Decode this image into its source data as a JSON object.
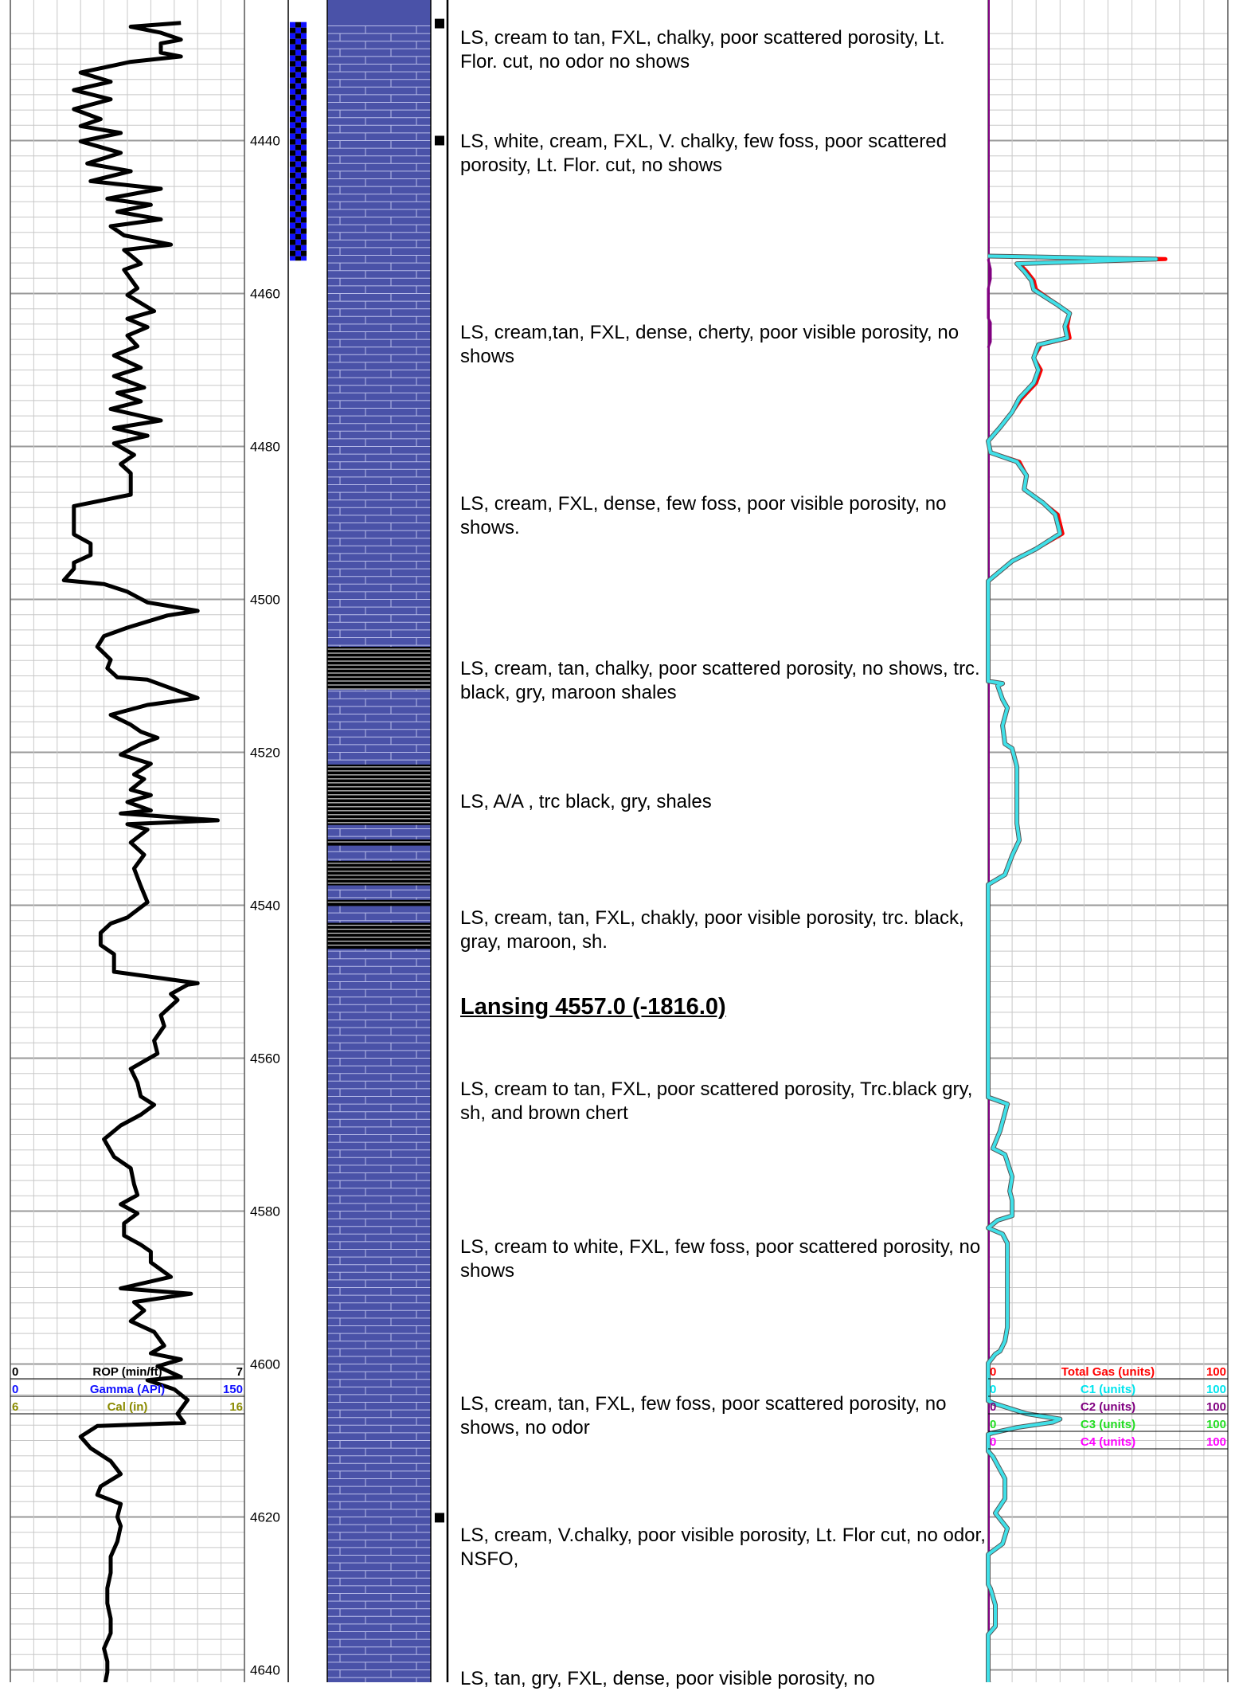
{
  "chart_data": {
    "type": "line",
    "title": "",
    "depth_axis": {
      "ticks": [
        4440,
        4460,
        4480,
        4500,
        4520,
        4540,
        4560,
        4580,
        4600,
        4620,
        4640
      ],
      "range": [
        4424.5,
        4642.5
      ]
    },
    "track1_curves": [
      {
        "name": "ROP (min/ft)",
        "min": "0",
        "max": "7",
        "color": "#000000"
      },
      {
        "name": "Gamma (API)",
        "min": "0",
        "max": "150",
        "color": "#1010ff"
      },
      {
        "name": "Cal (in)",
        "min": "6",
        "max": "16",
        "color": "#8a8a00"
      }
    ],
    "gas_curves": [
      {
        "name": "Total Gas (units)",
        "min": "0",
        "max": "100",
        "color": "#ff0000"
      },
      {
        "name": "C1 (units)",
        "min": "0",
        "max": "100",
        "color": "#00e5ee"
      },
      {
        "name": "C2 (units)",
        "min": "0",
        "max": "100",
        "color": "#800080"
      },
      {
        "name": "C3 (units)",
        "min": "0",
        "max": "100",
        "color": "#22dd22"
      },
      {
        "name": "C4 (units)",
        "min": "0",
        "max": "100",
        "color": "#ff00ff"
      }
    ],
    "rop_series": [
      [
        4424.6,
        5.1
      ],
      [
        4425.1,
        3.6
      ],
      [
        4425.9,
        4.5
      ],
      [
        4426.8,
        5.1
      ],
      [
        4427.3,
        4.5
      ],
      [
        4428.5,
        4.5
      ],
      [
        4429,
        5.1
      ],
      [
        4429.7,
        3.6
      ],
      [
        4431.1,
        2.1
      ],
      [
        4432.3,
        3.0
      ],
      [
        4433.4,
        1.9
      ],
      [
        4434.6,
        3.0
      ],
      [
        4435.9,
        1.9
      ],
      [
        4437.2,
        2.7
      ],
      [
        4438.1,
        2.1
      ],
      [
        4439,
        3.3
      ],
      [
        4440.1,
        2.1
      ],
      [
        4441.6,
        3.3
      ],
      [
        4443,
        2.3
      ],
      [
        4444,
        3.6
      ],
      [
        4445.3,
        2.4
      ],
      [
        4446.3,
        4.5
      ],
      [
        4447.6,
        2.9
      ],
      [
        4448.4,
        4.2
      ],
      [
        4449.3,
        3.2
      ],
      [
        4450.3,
        4.5
      ],
      [
        4451.2,
        3.0
      ],
      [
        4452.4,
        3.4
      ],
      [
        4453.6,
        4.8
      ],
      [
        4454.3,
        3.4
      ],
      [
        4456.1,
        3.9
      ],
      [
        4456.9,
        3.4
      ],
      [
        4459.3,
        3.8
      ],
      [
        4460.2,
        3.5
      ],
      [
        4462.3,
        4.3
      ],
      [
        4463.3,
        3.5
      ],
      [
        4464.4,
        4.1
      ],
      [
        4465.5,
        3.5
      ],
      [
        4466.9,
        3.8
      ],
      [
        4468.1,
        3.1
      ],
      [
        4469.7,
        3.9
      ],
      [
        4470.8,
        3.1
      ],
      [
        4472.3,
        4.0
      ],
      [
        4473,
        3.2
      ],
      [
        4474.1,
        3.9
      ],
      [
        4475.1,
        3.0
      ],
      [
        4476.6,
        4.5
      ],
      [
        4477.6,
        3.1
      ],
      [
        4478.6,
        4.1
      ],
      [
        4479.6,
        3.1
      ],
      [
        4481.1,
        3.7
      ],
      [
        4482.3,
        3.3
      ],
      [
        4483.5,
        3.6
      ],
      [
        4484.2,
        3.6
      ],
      [
        4486.3,
        3.6
      ],
      [
        4487.8,
        1.9
      ],
      [
        4489.5,
        1.9
      ],
      [
        4491.5,
        1.9
      ],
      [
        4492.7,
        2.4
      ],
      [
        4494.2,
        2.4
      ],
      [
        4495.2,
        1.9
      ],
      [
        4496,
        1.9
      ],
      [
        4497.5,
        1.6
      ],
      [
        4498,
        2.8
      ],
      [
        4499,
        3.5
      ],
      [
        4500.4,
        4.1
      ],
      [
        4501.5,
        5.6
      ],
      [
        4502.1,
        4.7
      ],
      [
        4503.7,
        3.5
      ],
      [
        4504.8,
        2.8
      ],
      [
        4506.2,
        2.6
      ],
      [
        4507.9,
        3.0
      ],
      [
        4509,
        2.9
      ],
      [
        4510.2,
        3.2
      ],
      [
        4510.5,
        4.1
      ],
      [
        4512.9,
        5.6
      ],
      [
        4513.8,
        4.1
      ],
      [
        4515.1,
        3.0
      ],
      [
        4516.4,
        3.6
      ],
      [
        4517.3,
        3.9
      ],
      [
        4518.1,
        4.4
      ],
      [
        4518.9,
        3.9
      ],
      [
        4520.3,
        3.3
      ],
      [
        4521.5,
        4.2
      ],
      [
        4522.9,
        3.7
      ],
      [
        4523.5,
        4.0
      ],
      [
        4524.9,
        3.6
      ],
      [
        4525.6,
        4.2
      ],
      [
        4526.5,
        3.5
      ],
      [
        4527.6,
        4.2
      ],
      [
        4528,
        3.3
      ],
      [
        4528.9,
        6.2
      ],
      [
        4529.4,
        3.5
      ],
      [
        4530.1,
        4.1
      ],
      [
        4531.8,
        3.6
      ],
      [
        4533.4,
        4.0
      ],
      [
        4535.2,
        3.7
      ],
      [
        4537.5,
        3.9
      ],
      [
        4539.6,
        4.1
      ],
      [
        4541.6,
        3.5
      ],
      [
        4542.4,
        3.0
      ],
      [
        4543.6,
        2.7
      ],
      [
        4545.2,
        2.7
      ],
      [
        4546.4,
        3.1
      ],
      [
        4547.8,
        3.1
      ],
      [
        4548.7,
        3.1
      ],
      [
        4550.2,
        5.6
      ],
      [
        4550.4,
        5.3
      ],
      [
        4551.6,
        4.8
      ],
      [
        4552.4,
        5.0
      ],
      [
        4554.4,
        4.5
      ],
      [
        4555.8,
        4.6
      ],
      [
        4557.7,
        4.3
      ],
      [
        4559.4,
        4.4
      ],
      [
        4561.4,
        3.6
      ],
      [
        4563.2,
        3.8
      ],
      [
        4565,
        3.9
      ],
      [
        4566.1,
        4.3
      ],
      [
        4567.4,
        3.9
      ],
      [
        4568.8,
        3.3
      ],
      [
        4570.6,
        2.8
      ],
      [
        4572.9,
        3.1
      ],
      [
        4574.4,
        3.6
      ],
      [
        4576.5,
        3.7
      ],
      [
        4577.9,
        3.8
      ],
      [
        4579.1,
        3.3
      ],
      [
        4580.3,
        3.8
      ],
      [
        4581.6,
        3.4
      ],
      [
        4583.2,
        3.4
      ],
      [
        4584.4,
        3.9
      ],
      [
        4585.3,
        4.2
      ],
      [
        4586.7,
        4.2
      ],
      [
        4588.6,
        4.8
      ],
      [
        4590.1,
        3.3
      ],
      [
        4590.8,
        5.4
      ],
      [
        4591.9,
        3.7
      ],
      [
        4593,
        4.0
      ],
      [
        4594.4,
        3.6
      ],
      [
        4595.8,
        4.3
      ],
      [
        4597.6,
        4.6
      ],
      [
        4598.6,
        4.2
      ],
      [
        4599.4,
        5.1
      ],
      [
        4600.3,
        4.4
      ],
      [
        4601.7,
        5.1
      ],
      [
        4602.1,
        4.1
      ],
      [
        4603.3,
        4.9
      ],
      [
        4604.7,
        5.3
      ],
      [
        4606.5,
        5.0
      ],
      [
        4607.7,
        5.2
      ],
      [
        4608.1,
        2.6
      ],
      [
        4609.5,
        2.1
      ],
      [
        4611,
        2.4
      ],
      [
        4612.7,
        3.0
      ],
      [
        4614.4,
        3.3
      ],
      [
        4616,
        2.7
      ],
      [
        4617.1,
        2.6
      ],
      [
        4618.3,
        3.3
      ],
      [
        4620,
        3.2
      ],
      [
        4621.2,
        3.3
      ],
      [
        4623.2,
        3.2
      ],
      [
        4625.2,
        3.0
      ],
      [
        4627.3,
        3.0
      ],
      [
        4629.3,
        2.9
      ],
      [
        4631.3,
        2.9
      ],
      [
        4633.3,
        3.0
      ],
      [
        4635.2,
        3.0
      ],
      [
        4637.2,
        2.8
      ],
      [
        4638.9,
        2.9
      ],
      [
        4640.3,
        2.9
      ],
      [
        4642.5,
        2.8
      ]
    ],
    "total_gas_series": [
      [
        4455.1,
        0
      ],
      [
        4455.5,
        74
      ],
      [
        4456.1,
        13
      ],
      [
        4457.1,
        16
      ],
      [
        4458.3,
        19
      ],
      [
        4459.5,
        20
      ],
      [
        4461.5,
        29
      ],
      [
        4462.6,
        34
      ],
      [
        4464.3,
        33
      ],
      [
        4465.8,
        34
      ],
      [
        4466.7,
        22
      ],
      [
        4468.4,
        19
      ],
      [
        4470,
        22
      ],
      [
        4471.7,
        20
      ],
      [
        4473.7,
        14
      ],
      [
        4475.5,
        10
      ],
      [
        4477.5,
        5
      ],
      [
        4479.3,
        0
      ],
      [
        4480.8,
        1
      ],
      [
        4482,
        13
      ],
      [
        4483.8,
        16
      ],
      [
        4485.6,
        15
      ],
      [
        4487.4,
        23
      ],
      [
        4488.9,
        29
      ],
      [
        4491.4,
        31
      ],
      [
        4493.4,
        20
      ],
      [
        4495,
        10
      ],
      [
        4497.6,
        0
      ],
      [
        4499.1,
        0
      ]
    ],
    "c1_series": [
      [
        4455.1,
        0
      ],
      [
        4455.5,
        70
      ],
      [
        4456.1,
        12
      ],
      [
        4457.1,
        15
      ],
      [
        4458.3,
        18
      ],
      [
        4459.5,
        19
      ],
      [
        4461.5,
        29
      ],
      [
        4462.6,
        34
      ],
      [
        4464.3,
        32
      ],
      [
        4465.8,
        33
      ],
      [
        4466.7,
        21
      ],
      [
        4468.4,
        19
      ],
      [
        4470,
        21
      ],
      [
        4471.7,
        19
      ],
      [
        4473.7,
        13
      ],
      [
        4475.5,
        10
      ],
      [
        4477.5,
        5
      ],
      [
        4479.3,
        0
      ],
      [
        4480.8,
        1
      ],
      [
        4482,
        12
      ],
      [
        4483.8,
        16
      ],
      [
        4485.6,
        15
      ],
      [
        4487.4,
        23
      ],
      [
        4488.9,
        28
      ],
      [
        4491.4,
        30
      ],
      [
        4493.4,
        20
      ],
      [
        4495,
        10
      ],
      [
        4497.6,
        0
      ],
      [
        4499.1,
        0
      ],
      [
        4510.7,
        0
      ],
      [
        4511,
        6
      ],
      [
        4511.3,
        4
      ],
      [
        4513.1,
        6
      ],
      [
        4514.2,
        8
      ],
      [
        4516.5,
        6
      ],
      [
        4518.9,
        7
      ],
      [
        4519.5,
        10
      ],
      [
        4521.9,
        12
      ],
      [
        4524,
        12
      ],
      [
        4526.5,
        12
      ],
      [
        4529.3,
        12
      ],
      [
        4531.5,
        13
      ],
      [
        4533.5,
        10
      ],
      [
        4536,
        7
      ],
      [
        4537.3,
        0
      ],
      [
        4565.1,
        0
      ],
      [
        4566,
        8
      ],
      [
        4569.5,
        5
      ],
      [
        4571.8,
        2
      ],
      [
        4572.6,
        7
      ],
      [
        4575.5,
        10
      ],
      [
        4577.4,
        9
      ],
      [
        4578.6,
        10
      ],
      [
        4580.6,
        10
      ],
      [
        4581.2,
        4
      ],
      [
        4582.2,
        0
      ],
      [
        4583,
        6
      ],
      [
        4584.2,
        8
      ],
      [
        4586.4,
        8
      ],
      [
        4588,
        8
      ],
      [
        4590.1,
        8
      ],
      [
        4592.1,
        8
      ],
      [
        4595.2,
        8
      ],
      [
        4597,
        7
      ],
      [
        4598.3,
        5
      ],
      [
        4598.7,
        3
      ],
      [
        4599.9,
        0
      ],
      [
        4604.8,
        0
      ],
      [
        4605.1,
        2
      ],
      [
        4606.5,
        16
      ],
      [
        4607.2,
        30
      ],
      [
        4607.6,
        27
      ],
      [
        4608.3,
        12
      ],
      [
        4609,
        2
      ],
      [
        4609.2,
        0
      ],
      [
        4611.4,
        0
      ],
      [
        4612.1,
        2
      ],
      [
        4615,
        7
      ],
      [
        4617.6,
        7
      ],
      [
        4619.5,
        3
      ],
      [
        4621.5,
        8
      ],
      [
        4623.5,
        6
      ],
      [
        4624.9,
        0
      ],
      [
        4628.8,
        0
      ],
      [
        4629.4,
        1
      ],
      [
        4631.5,
        3
      ],
      [
        4633,
        3
      ],
      [
        4634.3,
        3
      ],
      [
        4635.4,
        0
      ],
      [
        4641.5,
        0
      ],
      [
        4642.5,
        1
      ]
    ],
    "c2_series": [
      [
        4455.5,
        0
      ],
      [
        4456.8,
        1
      ],
      [
        4458.1,
        1
      ],
      [
        4459.4,
        0
      ],
      [
        4463.2,
        0
      ],
      [
        4463.8,
        1
      ],
      [
        4466.3,
        1
      ],
      [
        4467.1,
        0
      ]
    ],
    "lithology_intervals": [
      {
        "top": 4506.2,
        "base": 4511.8,
        "label": ""
      },
      {
        "top": 4521.6,
        "base": 4529.5,
        "label": ""
      },
      {
        "top": 4531.4,
        "base": 4532.2,
        "label": ""
      },
      {
        "top": 4534.2,
        "base": 4537.4,
        "label": ""
      },
      {
        "top": 4539.3,
        "base": 4540.1,
        "label": ""
      },
      {
        "top": 4542.3,
        "base": 4545.7,
        "label": ""
      }
    ],
    "depth_track_marks": [
      4424.8,
      4440.1,
      4620.2
    ],
    "cored_interval": {
      "top": 4424.5,
      "base": 4455.7
    },
    "descriptions": [
      {
        "depth": 4425.9,
        "text": "LS, cream to tan, FXL, chalky, poor scattered porosity, Lt. Flor. cut, no odor no shows"
      },
      {
        "depth": 4439.4,
        "text": "LS, white, cream, FXL, V. chalky, few foss, poor scattered porosity, Lt. Flor. cut, no shows"
      },
      {
        "depth": 4464.4,
        "text": "LS, cream,tan, FXL, dense, cherty, poor visible porosity, no shows"
      },
      {
        "depth": 4486.8,
        "text": "LS, cream, FXL, dense, few foss, poor visible porosity, no shows."
      },
      {
        "depth": 4508.4,
        "text": "LS, cream, tan, chalky, poor scattered porosity, no shows, trc. black, gry, maroon shales"
      },
      {
        "depth": 4525.8,
        "text": "LS, A/A , trc black, gry, shales"
      },
      {
        "depth": 4541.0,
        "text": "LS, cream, tan, FXL, chakly, poor visible porosity, trc. black, gray, maroon, sh."
      },
      {
        "depth": 4563.4,
        "text": "LS, cream to tan, FXL, poor scattered porosity, Trc.black gry, sh, and brown chert"
      },
      {
        "depth": 4584.0,
        "text": "LS, cream to white, FXL, few foss, poor scattered porosity, no shows"
      },
      {
        "depth": 4604.5,
        "text": "LS, cream, tan, FXL, few foss, poor scattered porosity, no shows, no odor"
      },
      {
        "depth": 4621.7,
        "text": "LS, cream, V.chalky, poor visible porosity, Lt. Flor cut, no odor, NSFO,"
      },
      {
        "depth": 4640.5,
        "text": "LS, tan, gry, FXL, dense, poor visible porosity, no"
      }
    ],
    "formation_top": {
      "depth": 4552.0,
      "text": "Lansing 4557.0 (-1816.0)"
    }
  }
}
